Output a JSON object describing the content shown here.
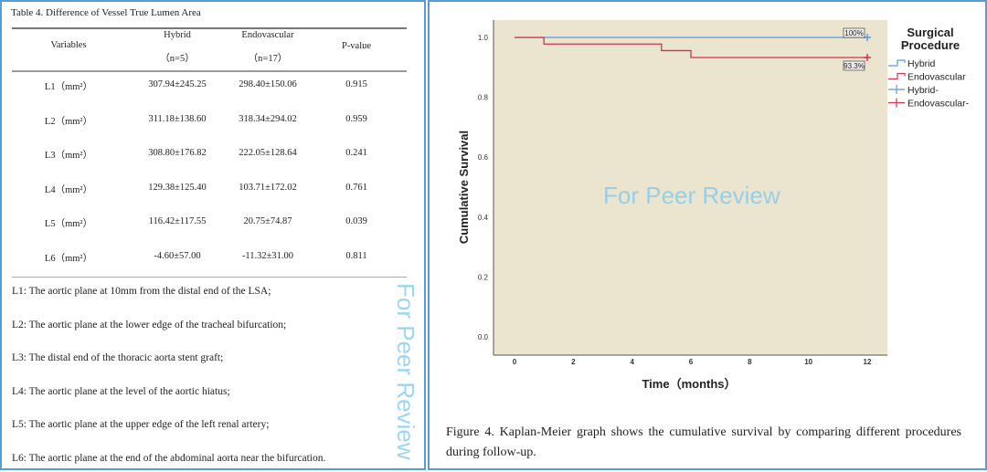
{
  "table": {
    "title": "Table 4.    Difference of Vessel True Lumen Area",
    "headers": {
      "variables": "Variables",
      "hybrid": "Hybrid",
      "hybrid_n": "（n=5）",
      "endovascular": "Endovascular",
      "endovascular_n": "（n=17）",
      "p_value": "P-value"
    },
    "rows": [
      {
        "variable": "L1（mm²）",
        "hybrid": "307.94±245.25",
        "endovascular": "298.40±150.06",
        "p": "0.915"
      },
      {
        "variable": "L2（mm²）",
        "hybrid": "311.18±138.60",
        "endovascular": "318.34±294.02",
        "p": "0.959"
      },
      {
        "variable": "L3（mm²）",
        "hybrid": "308.80±176.82",
        "endovascular": "222.05±128.64",
        "p": "0.241"
      },
      {
        "variable": "L4（mm²）",
        "hybrid": "129.38±125.40",
        "endovascular": "103.71±172.02",
        "p": "0.761"
      },
      {
        "variable": "L5（mm²）",
        "hybrid": "116.42±117.55",
        "endovascular": "20.75±74.87",
        "p": "0.039"
      },
      {
        "variable": "L6（mm²）",
        "hybrid": "-4.60±57.00",
        "endovascular": "-11.32±31.00",
        "p": "0.811"
      }
    ],
    "notes": [
      "L1: The aortic plane at 10mm from the distal end of the LSA;",
      "L2: The aortic plane at the lower edge of the tracheal bifurcation;",
      "L3: The distal end of the thoracic aorta stent graft;",
      "L4: The aortic plane at the level of the aortic hiatus;",
      "L5: The aortic plane at the upper edge of the left renal artery;",
      "L6: The aortic plane at the end of the abdominal aorta near the bifurcation."
    ]
  },
  "watermark": "For Peer Review",
  "chart_data": {
    "type": "line",
    "subtype": "kaplan-meier step",
    "xlabel": "Time（months）",
    "ylabel": "Cumulative Survival",
    "xlim": [
      0,
      12
    ],
    "ylim": [
      0,
      1.0
    ],
    "x_ticks": [
      "0",
      "2",
      "4",
      "6",
      "8",
      "10",
      "12"
    ],
    "y_ticks": [
      "0.0",
      "0.2",
      "0.4",
      "0.6",
      "0.8",
      "1.0"
    ],
    "background_color": "#ebe4cf",
    "grid": false,
    "legend": {
      "title": "Surgical Procedure",
      "placement": "right",
      "entries": [
        "Hybrid",
        "Endovascular",
        "Hybrid-",
        "Endovascular-"
      ]
    },
    "series": [
      {
        "name": "Hybrid",
        "color": "#5b9bd5",
        "steps": [
          [
            0,
            1.0
          ],
          [
            12,
            1.0
          ]
        ],
        "censored": [
          [
            12,
            1.0
          ]
        ],
        "end_label": "100%"
      },
      {
        "name": "Endovascular",
        "color": "#d0344a",
        "steps": [
          [
            0,
            1.0
          ],
          [
            1,
            0.978
          ],
          [
            5,
            0.956
          ],
          [
            6,
            0.933
          ],
          [
            12,
            0.933
          ]
        ],
        "censored": [
          [
            12,
            0.933
          ]
        ],
        "end_label": "93.3%"
      }
    ]
  },
  "caption": "Figure 4. Kaplan-Meier graph shows the cumulative survival by comparing different procedures during follow-up."
}
